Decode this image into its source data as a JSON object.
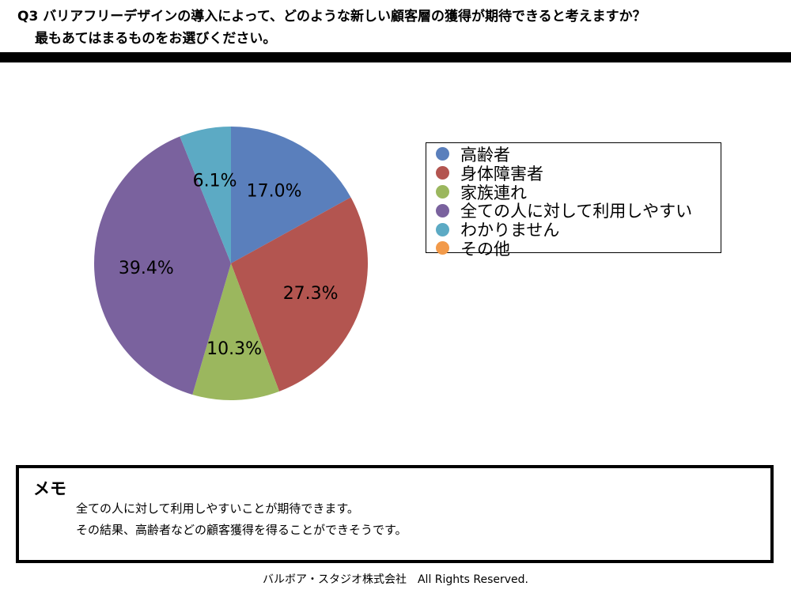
{
  "question": {
    "line1": "Q3 バリアフリーデザインの導入によって、どのような新しい顧客層の獲得が期待できると考えますか？",
    "line2": "最もあてはまるものをお選びください。"
  },
  "chart_data": {
    "type": "pie",
    "categories": [
      "高齢者",
      "身体障害者",
      "家族連れ",
      "全ての人に対して利用しやすい",
      "わかりません",
      "その他"
    ],
    "values": [
      17.0,
      27.3,
      10.3,
      39.4,
      6.1,
      0.0
    ],
    "data_labels": [
      "17.0%",
      "27.3%",
      "10.3%",
      "39.4%",
      "6.1%",
      ""
    ],
    "colors": [
      "#5a7fbc",
      "#b35550",
      "#9bb75e",
      "#7a629e",
      "#5caac4",
      "#f29a4a"
    ],
    "legend_position": "right",
    "start_angle_deg": 0,
    "direction": "clockwise"
  },
  "memo": {
    "title": "メモ",
    "line1": "全ての人に対して利用しやすいことが期待できます。",
    "line2": "その結果、高齢者などの顧客獲得を得ることができそうです。"
  },
  "footer": "バルボア・スタジオ株式会社　All Rights Reserved."
}
